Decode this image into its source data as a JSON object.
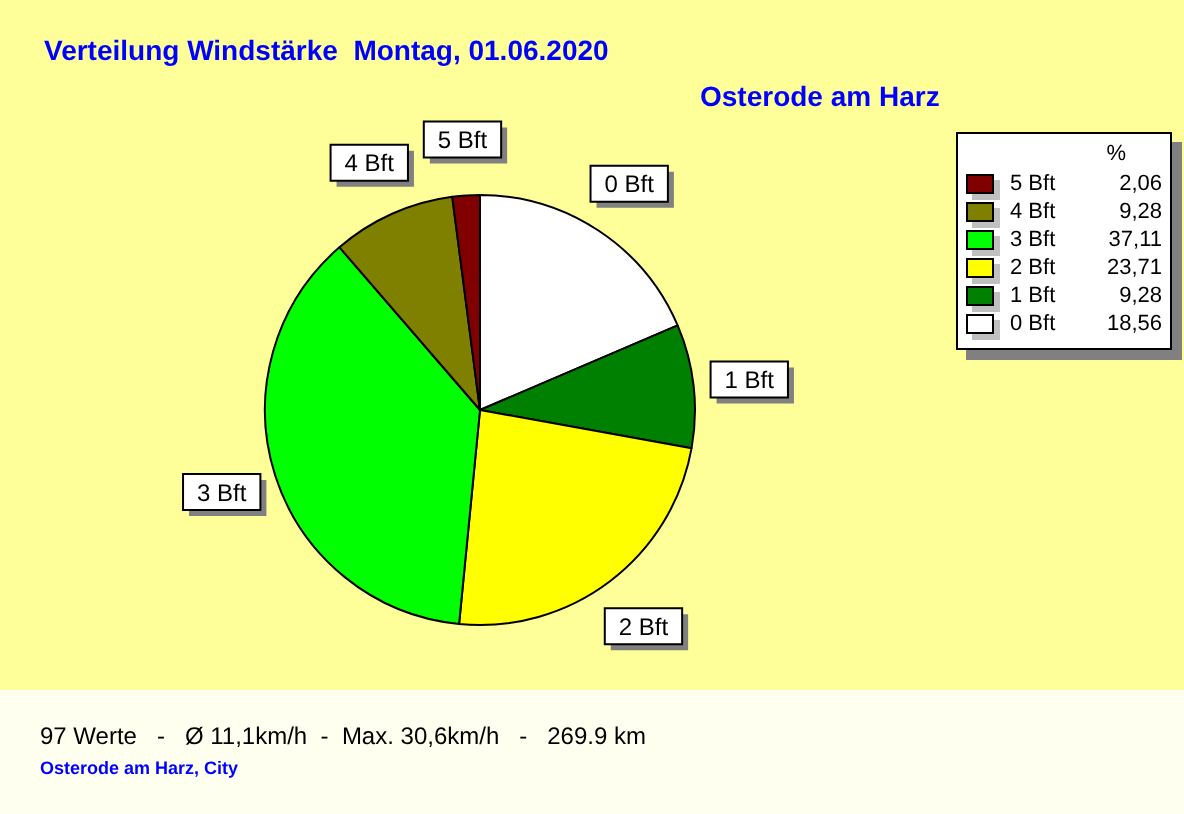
{
  "chart_data": {
    "type": "pie",
    "title": "Verteilung Windstärke  Montag, 01.06.2020",
    "subtitle": "Osterode am Harz",
    "legend_title": "%",
    "legend": "top right",
    "categories": [
      "0 Bft",
      "1 Bft",
      "2 Bft",
      "3 Bft",
      "4 Bft",
      "5 Bft"
    ],
    "values": [
      18.56,
      9.28,
      23.71,
      37.11,
      9.28,
      2.06
    ],
    "value_labels": [
      "18,56",
      "9,28",
      "23,71",
      "37,11",
      "9,28",
      "2,06"
    ],
    "colors": [
      "#ffffff",
      "#008000",
      "#ffff00",
      "#00ff00",
      "#808000",
      "#800000"
    ],
    "annotations": [
      "97 Werte   -   Ø 11,1km/h  -  Max. 30,6km/h   -   269.9 km",
      "Osterode am Harz, City"
    ]
  }
}
